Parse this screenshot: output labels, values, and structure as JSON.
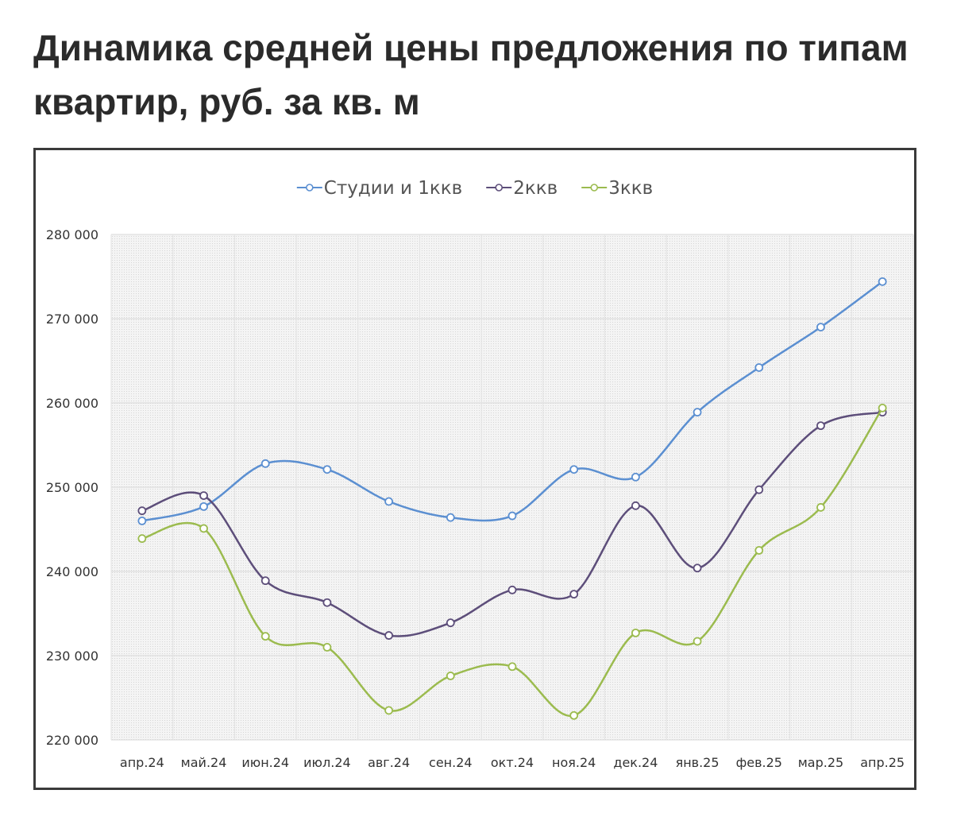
{
  "title": "Динамика средней цены предложения по типам квартир, руб. за кв. м",
  "chart_data": {
    "type": "line",
    "title": "Динамика средней цены предложения по типам квартир, руб. за кв. м",
    "xlabel": "",
    "ylabel": "",
    "categories": [
      "апр.24",
      "май.24",
      "июн.24",
      "июл.24",
      "авг.24",
      "сен.24",
      "окт.24",
      "ноя.24",
      "дек.24",
      "янв.25",
      "фев.25",
      "мар.25",
      "апр.25"
    ],
    "ylim": [
      220000,
      280000
    ],
    "yticks": [
      220000,
      230000,
      240000,
      250000,
      260000,
      270000,
      280000
    ],
    "ytick_labels": [
      "220 000",
      "230 000",
      "240 000",
      "250 000",
      "260 000",
      "270 000",
      "280 000"
    ],
    "grid": true,
    "legend_position": "top-center",
    "series": [
      {
        "name": "Студии и 1ккв",
        "color": "#5b8fd1",
        "values": [
          246000,
          247700,
          252800,
          252100,
          248300,
          246400,
          246600,
          252100,
          251200,
          258900,
          264200,
          269000,
          274400
        ]
      },
      {
        "name": "2ккв",
        "color": "#5d4e7a",
        "values": [
          247200,
          249000,
          238900,
          236300,
          232400,
          233900,
          237800,
          237300,
          247800,
          240400,
          249700,
          257300,
          258900
        ]
      },
      {
        "name": "3ккв",
        "color": "#9bbb4e",
        "values": [
          243900,
          245100,
          232300,
          231000,
          223500,
          227600,
          228700,
          222900,
          232700,
          231700,
          242500,
          247600,
          259400
        ]
      }
    ]
  }
}
